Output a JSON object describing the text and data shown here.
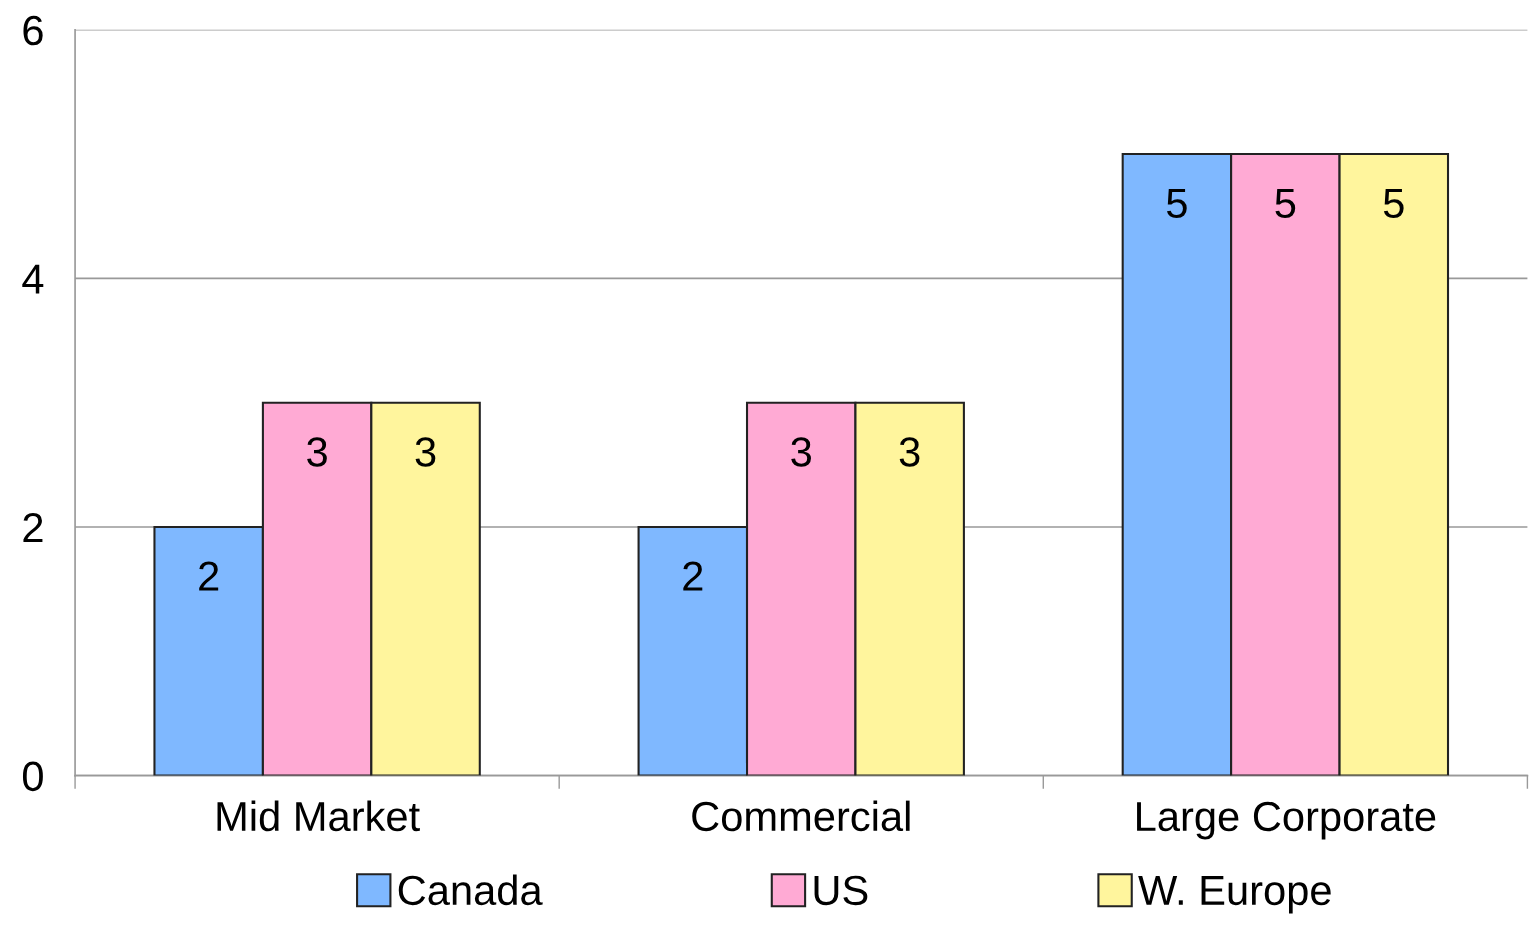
{
  "chart_data": {
    "type": "bar",
    "categories": [
      "Mid Market",
      "Commercial",
      "Large Corporate"
    ],
    "series": [
      {
        "name": "Canada",
        "color": "#7fb8ff",
        "values": [
          2,
          2,
          5
        ]
      },
      {
        "name": "US",
        "color": "#ffaad4",
        "values": [
          3,
          3,
          5
        ]
      },
      {
        "name": "W. Europe",
        "color": "#fff59d",
        "values": [
          3,
          3,
          5
        ]
      }
    ],
    "ylim": [
      0,
      6
    ],
    "yticks": [
      0,
      2,
      4,
      6
    ],
    "grid": "y",
    "legend": "bottom",
    "data_labels": true
  }
}
